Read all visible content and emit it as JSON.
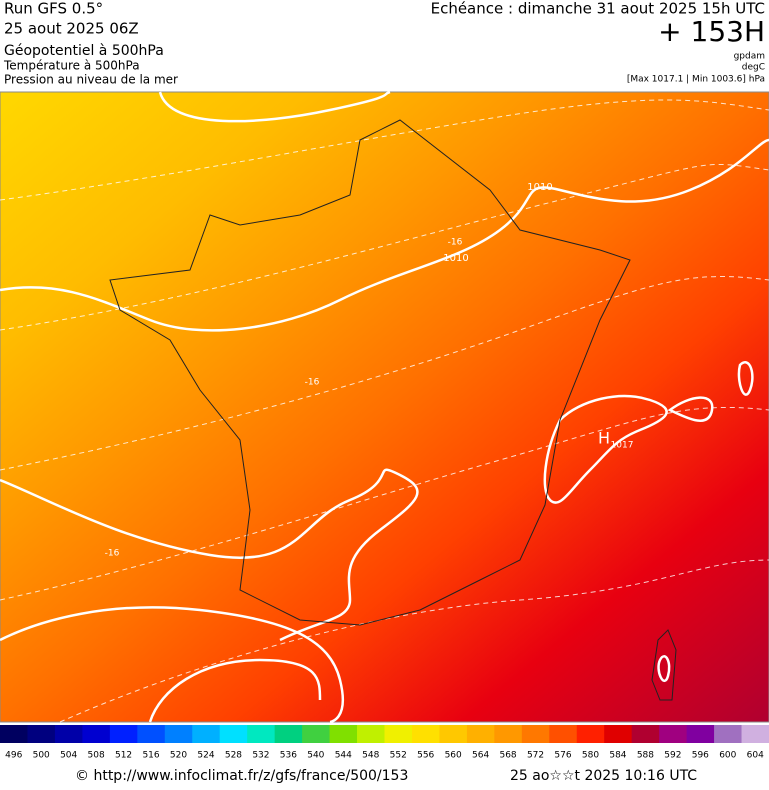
{
  "header": {
    "left": [
      "Run GFS 0.5°",
      "25 aout 2025 06Z",
      "Géopotentiel à 500hPa",
      "Température à 500hPa",
      "Pression au niveau de la mer"
    ],
    "right": {
      "valid": "Echéance : dimanche 31 aout 2025 15h UTC",
      "lead": "+ 153H",
      "units": [
        "gpdam",
        "degC"
      ],
      "range": "[Max 1017.1 | Min 1003.6] hPa"
    }
  },
  "map": {
    "labels": [
      "1010",
      "1010",
      "-16",
      "-16",
      "-16",
      "H",
      "1017"
    ]
  },
  "colorbar": {
    "labels": [
      496,
      500,
      504,
      508,
      512,
      516,
      520,
      524,
      528,
      532,
      536,
      540,
      544,
      548,
      552,
      556,
      560,
      564,
      568,
      572,
      576,
      580,
      584,
      588,
      592,
      596,
      600,
      604
    ],
    "colors": [
      "#000060",
      "#00007f",
      "#0000a8",
      "#0000d0",
      "#0020ff",
      "#0050ff",
      "#0080ff",
      "#00b0ff",
      "#00e0ff",
      "#00e8c0",
      "#00d080",
      "#40d040",
      "#80e000",
      "#c0f000",
      "#f0f000",
      "#ffe000",
      "#ffc800",
      "#ffb000",
      "#ff9800",
      "#ff7800",
      "#ff5000",
      "#ff2000",
      "#e00000",
      "#b00030",
      "#a00080",
      "#8000a0",
      "#a070c0",
      "#d0b0e0"
    ]
  },
  "footer": {
    "url": "© http://www.infoclimat.fr/z/gfs/france/500/153",
    "generated": "25 ao☆☆t 2025 10:16 UTC"
  }
}
